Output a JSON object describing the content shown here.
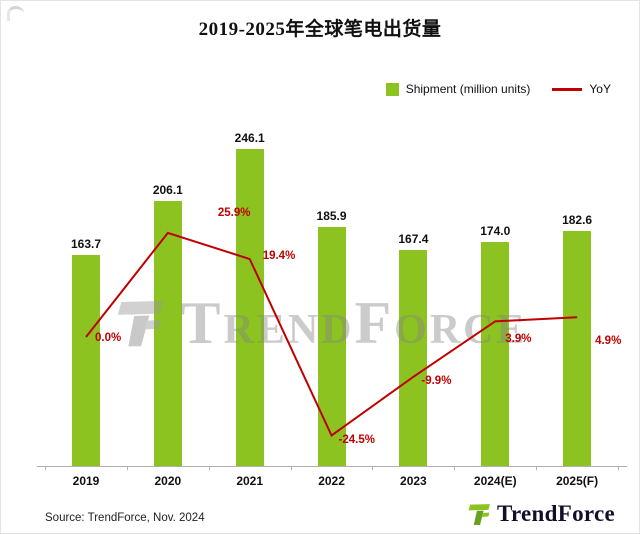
{
  "title": "2019-2025年全球笔电出货量",
  "legend": {
    "shipment": "Shipment (million units)",
    "yoy": "YoY"
  },
  "colors": {
    "bar": "#8CC320",
    "line": "#C00000"
  },
  "chart_data": {
    "type": "bar",
    "subtype": "combo-bar-line",
    "title": "2019-2025年全球笔电出货量",
    "categories": [
      "2019",
      "2020",
      "2021",
      "2022",
      "2023",
      "2024(E)",
      "2025(F)"
    ],
    "series": [
      {
        "name": "Shipment (million units)",
        "type": "bar",
        "values": [
          163.7,
          206.1,
          246.1,
          185.9,
          167.4,
          174.0,
          182.6
        ],
        "labels": [
          "163.7",
          "206.1",
          "246.1",
          "185.9",
          "167.4",
          "174.0",
          "182.6"
        ]
      },
      {
        "name": "YoY",
        "type": "line",
        "values": [
          0.0,
          25.9,
          19.4,
          -24.5,
          -9.9,
          3.9,
          4.9
        ],
        "labels": [
          "0.0%",
          "25.9%",
          "19.4%",
          "-24.5%",
          "-9.9%",
          "3.9%",
          "4.9%"
        ]
      }
    ],
    "xlabel": "",
    "ylabel": "",
    "grid": false,
    "legend_position": "top-right"
  },
  "watermark": {
    "text": "TrendForce"
  },
  "footer": {
    "source": "Source: TrendForce, Nov. 2024",
    "logo_text": "TrendForce"
  }
}
